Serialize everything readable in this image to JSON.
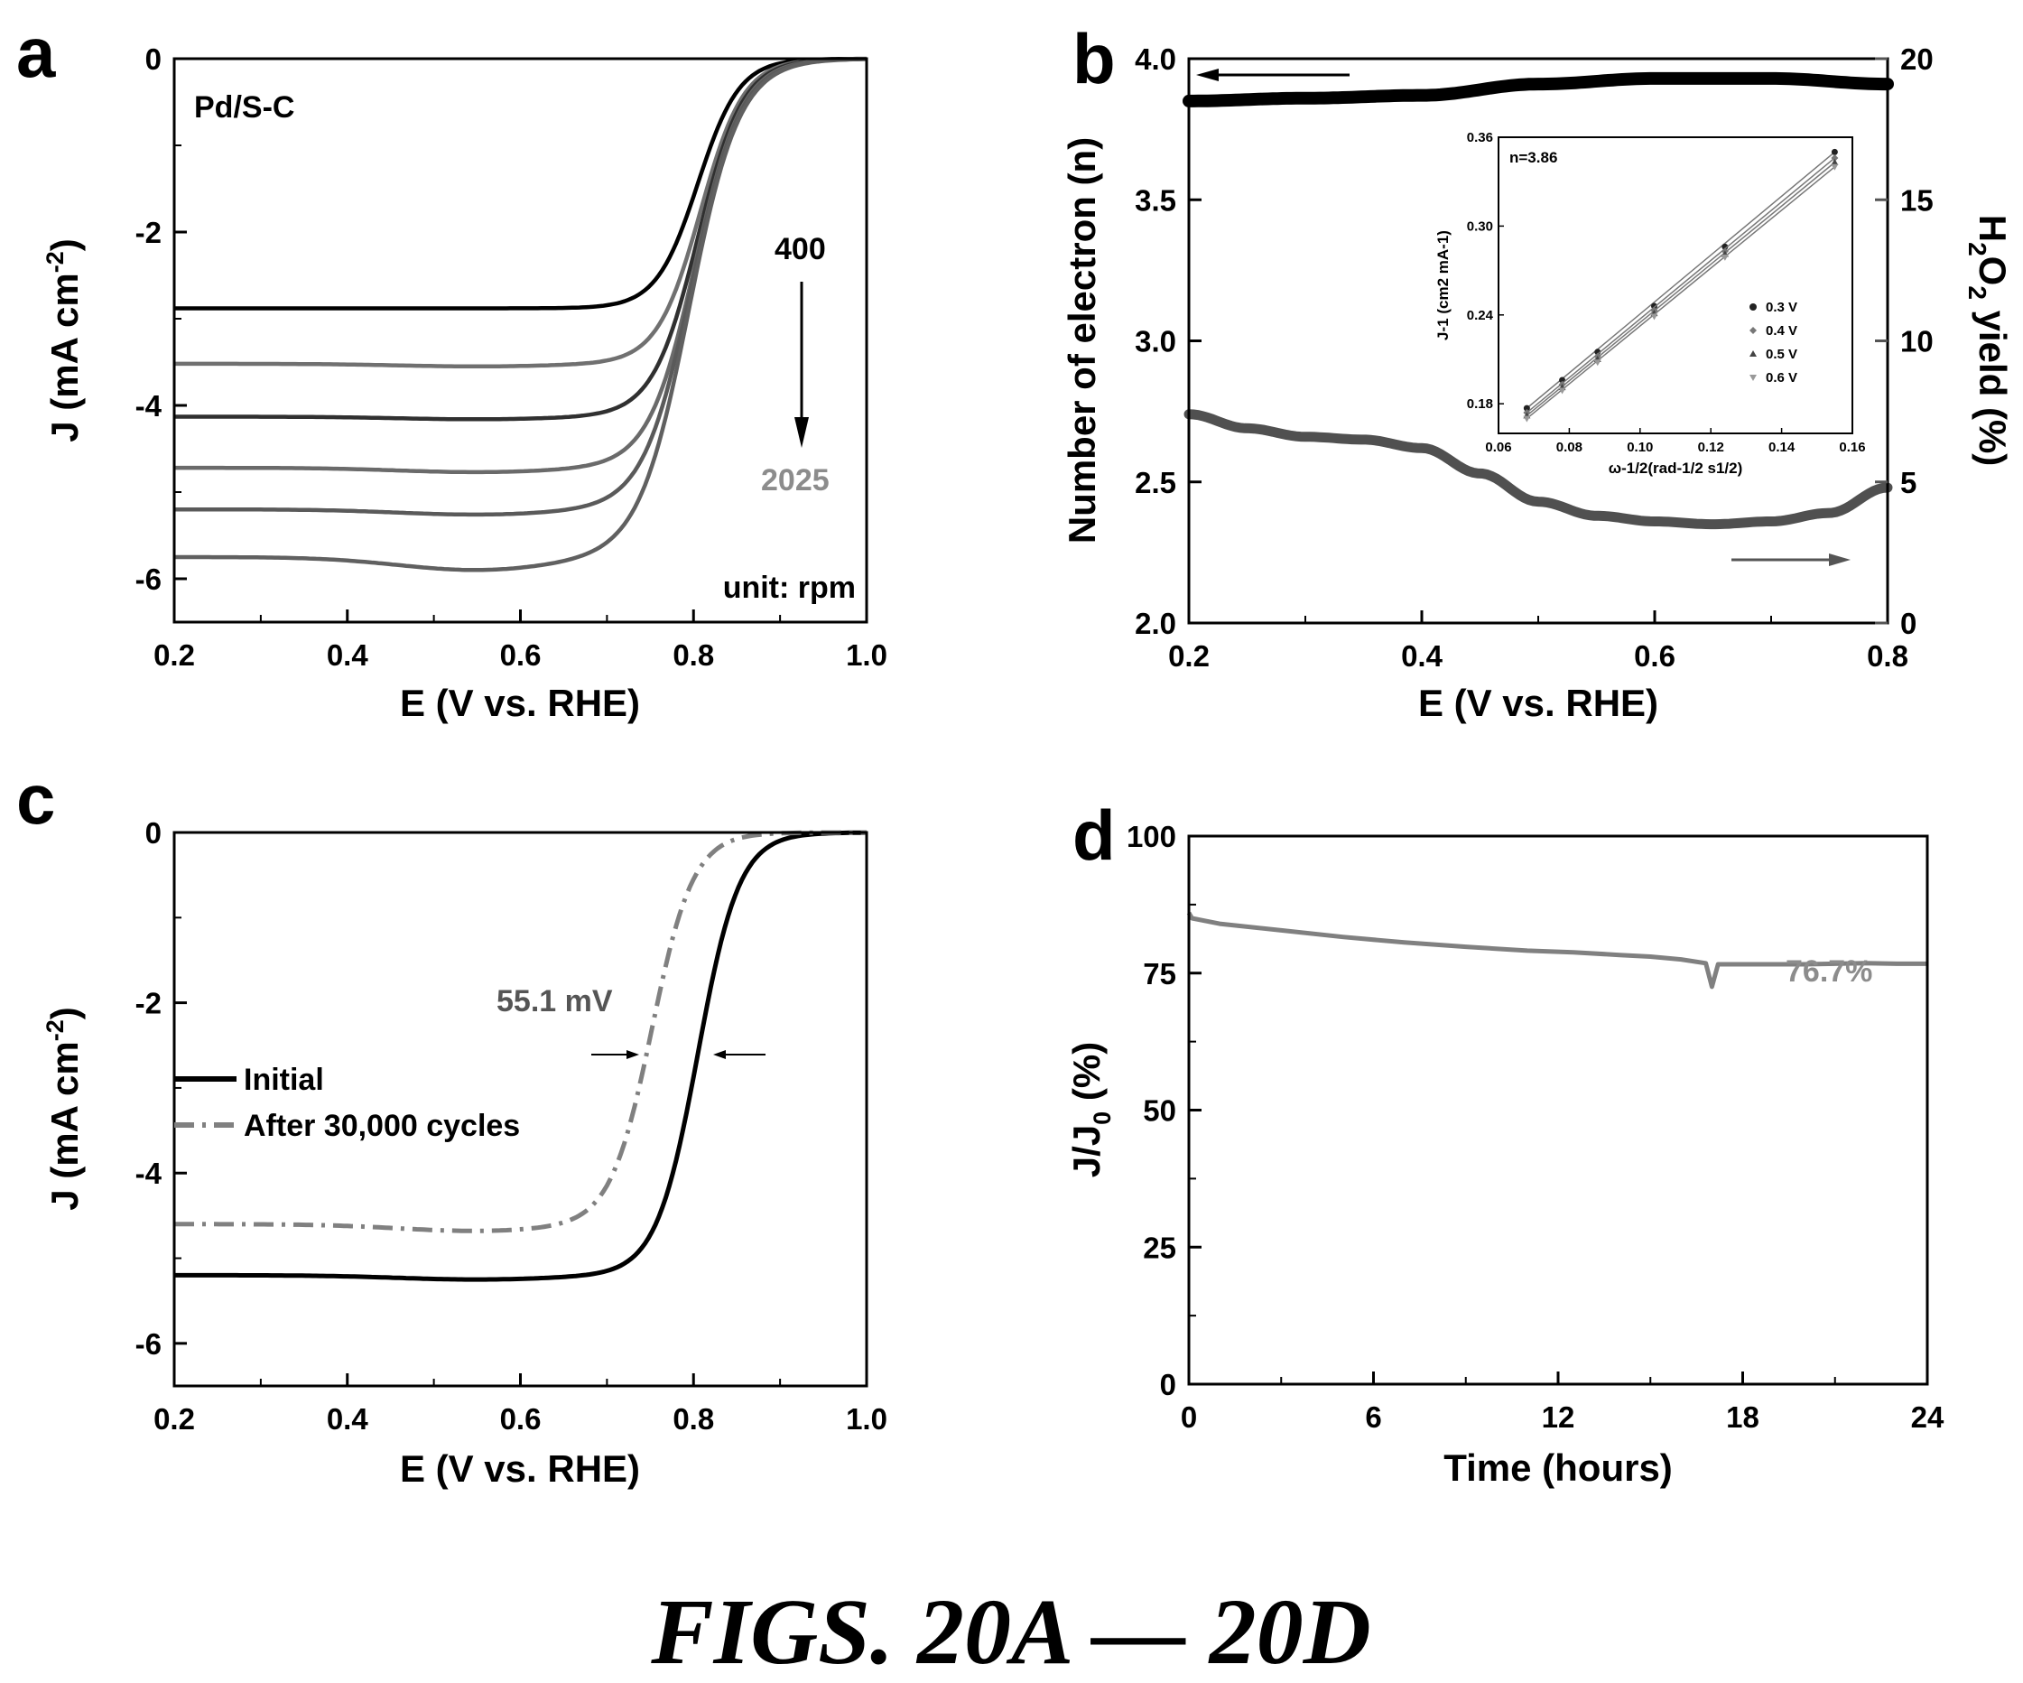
{
  "caption": "FIGS. 20A — 20D",
  "chart_data": [
    {
      "panel": "a",
      "type": "line",
      "xlabel": "E (V vs. RHE)",
      "ylabel_main": "J (mA cm",
      "ylabel_sup": "-2",
      "ylabel_end": ")",
      "xlim": [
        0.2,
        1.0
      ],
      "ylim": [
        -6.5,
        0
      ],
      "xticks": [
        0.2,
        0.4,
        0.6,
        0.8,
        1.0
      ],
      "xtick_labels": [
        "0.2",
        "0.4",
        "0.6",
        "0.8",
        "1.0"
      ],
      "yticks": [
        0,
        -2,
        -4,
        -6
      ],
      "ytick_labels": [
        "0",
        "-2",
        "-4",
        "-6"
      ],
      "annotations": {
        "sample": "Pd/S-C",
        "rpm_low": "400",
        "rpm_high": "2025",
        "unit": "unit: rpm"
      },
      "series": [
        {
          "limit": -2.88,
          "e_half": 0.805,
          "width": 0.024,
          "dip": 0.0,
          "color": "#000000"
        },
        {
          "limit": -3.52,
          "e_half": 0.808,
          "width": 0.025,
          "dip": 0.03,
          "color": "#707070"
        },
        {
          "limit": -4.13,
          "e_half": 0.805,
          "width": 0.026,
          "dip": 0.03,
          "color": "#303030"
        },
        {
          "limit": -4.72,
          "e_half": 0.802,
          "width": 0.027,
          "dip": 0.05,
          "color": "#6a6a6a"
        },
        {
          "limit": -5.2,
          "e_half": 0.798,
          "width": 0.028,
          "dip": 0.06,
          "color": "#5a5a5a"
        },
        {
          "limit": -5.75,
          "e_half": 0.795,
          "width": 0.029,
          "dip": 0.15,
          "color": "#606060"
        }
      ]
    },
    {
      "panel": "b",
      "type": "line",
      "xlabel": "E (V vs. RHE)",
      "ylabel_left": "Number of electron (n)",
      "ylabel_right_parts": [
        "H",
        "2",
        "O",
        "2",
        " yield (%)"
      ],
      "xlim": [
        0.2,
        0.8
      ],
      "ylim_left": [
        2.0,
        4.0
      ],
      "ylim_right": [
        0,
        20
      ],
      "xticks": [
        0.2,
        0.4,
        0.6,
        0.8
      ],
      "xtick_labels": [
        "0.2",
        "0.4",
        "0.6",
        "0.8"
      ],
      "yticks_left": [
        2.0,
        2.5,
        3.0,
        3.5,
        4.0
      ],
      "ytick_labels_left": [
        "2.0",
        "2.5",
        "3.0",
        "3.5",
        "4.0"
      ],
      "yticks_right": [
        0,
        5,
        10,
        15,
        20
      ],
      "ytick_labels_right": [
        "0",
        "5",
        "10",
        "15",
        "20"
      ],
      "series": [
        {
          "name": "n",
          "axis": "left",
          "color": "#000000",
          "x": [
            0.2,
            0.3,
            0.4,
            0.5,
            0.6,
            0.7,
            0.8
          ],
          "y": [
            3.85,
            3.86,
            3.87,
            3.91,
            3.93,
            3.93,
            3.91
          ]
        },
        {
          "name": "H2O2",
          "axis": "right",
          "color": "#505050",
          "x": [
            0.2,
            0.25,
            0.3,
            0.35,
            0.4,
            0.45,
            0.5,
            0.55,
            0.6,
            0.65,
            0.7,
            0.75,
            0.8
          ],
          "y": [
            7.4,
            6.9,
            6.6,
            6.5,
            6.2,
            5.3,
            4.3,
            3.8,
            3.6,
            3.5,
            3.6,
            3.9,
            4.8
          ]
        }
      ],
      "inset": {
        "title": "n=3.86",
        "xlabel": "ω-1/2(rad-1/2 s1/2)",
        "ylabel": "J-1 (cm2 mA-1)",
        "xlim": [
          0.06,
          0.16
        ],
        "ylim": [
          0.16,
          0.36
        ],
        "xtick_labels": [
          "0.06",
          "0.08",
          "0.10",
          "0.12",
          "0.14",
          "0.16"
        ],
        "xticks": [
          0.06,
          0.08,
          0.1,
          0.12,
          0.14,
          0.16
        ],
        "ytick_labels": [
          "0.18",
          "0.24",
          "0.30",
          "0.36"
        ],
        "yticks": [
          0.18,
          0.24,
          0.3,
          0.36
        ],
        "x": [
          0.068,
          0.078,
          0.088,
          0.104,
          0.124,
          0.155
        ],
        "series": [
          {
            "name": "0.3 V",
            "y": [
              0.177,
              0.196,
              0.215,
              0.246,
              0.286,
              0.35
            ]
          },
          {
            "name": "0.4 V",
            "y": [
              0.174,
              0.193,
              0.212,
              0.243,
              0.283,
              0.346
            ]
          },
          {
            "name": "0.5 V",
            "y": [
              0.172,
              0.191,
              0.21,
              0.241,
              0.281,
              0.343
            ]
          },
          {
            "name": "0.6 V",
            "y": [
              0.17,
              0.189,
              0.208,
              0.239,
              0.279,
              0.34
            ]
          }
        ]
      }
    },
    {
      "panel": "c",
      "type": "line",
      "xlabel": "E (V vs. RHE)",
      "ylabel_main": "J (mA cm",
      "ylabel_sup": "-2",
      "ylabel_end": ")",
      "xlim": [
        0.2,
        1.0
      ],
      "ylim": [
        -6.5,
        0
      ],
      "xticks": [
        0.2,
        0.4,
        0.6,
        0.8,
        1.0
      ],
      "xtick_labels": [
        "0.2",
        "0.4",
        "0.6",
        "0.8",
        "1.0"
      ],
      "yticks": [
        0,
        -2,
        -4,
        -6
      ],
      "ytick_labels": [
        "0",
        "-2",
        "-4",
        "-6"
      ],
      "annotation": "55.1 mV",
      "legend_position": "left",
      "series": [
        {
          "name": "Initial",
          "limit": -5.2,
          "e_half": 0.805,
          "width": 0.024,
          "dip": 0.05,
          "color": "#000000",
          "dash": ""
        },
        {
          "name": "After 30,000 cycles",
          "limit": -4.6,
          "e_half": 0.752,
          "width": 0.024,
          "dip": 0.08,
          "color": "#808080",
          "dash": "22,9,4,9"
        }
      ]
    },
    {
      "panel": "d",
      "type": "line",
      "xlabel": "Time (hours)",
      "ylabel_main": "J/J",
      "ylabel_sub": "0",
      "ylabel_end": " (%)",
      "xlim": [
        0,
        24
      ],
      "ylim": [
        0,
        100
      ],
      "xticks": [
        0,
        6,
        12,
        18,
        24
      ],
      "xtick_labels": [
        "0",
        "6",
        "12",
        "18",
        "24"
      ],
      "yticks": [
        0,
        25,
        50,
        75,
        100
      ],
      "ytick_labels": [
        "0",
        "25",
        "50",
        "75",
        "100"
      ],
      "annotation": "76.7%",
      "series": [
        {
          "name": "J/J0",
          "color": "#808080",
          "x": [
            0,
            0.1,
            1,
            3,
            5,
            7,
            9,
            11,
            12.5,
            14,
            15,
            16,
            16.8,
            17.0,
            17.2,
            18,
            19,
            20,
            22,
            23,
            24
          ],
          "y": [
            86,
            85,
            84,
            82.8,
            81.6,
            80.6,
            79.8,
            79.1,
            78.8,
            78.3,
            78.0,
            77.5,
            76.8,
            72.5,
            76.6,
            76.6,
            76.6,
            76.6,
            76.8,
            76.7,
            76.7
          ]
        }
      ]
    }
  ]
}
